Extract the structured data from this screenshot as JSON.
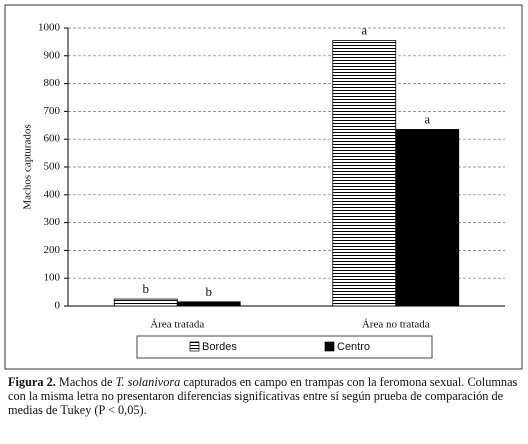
{
  "chart_data": {
    "type": "bar",
    "ylabel": "Machos capturados",
    "categories": [
      "Área tratada",
      "Área no tratada"
    ],
    "series": [
      {
        "name": "Bordes",
        "color": "#ffffff",
        "values": [
          25,
          955
        ],
        "labels": [
          "b",
          "a"
        ]
      },
      {
        "name": "Centro",
        "color": "#000000",
        "values": [
          15,
          635
        ],
        "labels": [
          "b",
          "a"
        ]
      }
    ],
    "ylim": [
      0,
      1000
    ],
    "yticks": [
      0,
      100,
      200,
      300,
      400,
      500,
      600,
      700,
      800,
      900,
      1000
    ],
    "grid": true,
    "legend": "bottom"
  },
  "caption": {
    "label": "Figura 2.",
    "parts": [
      " Machos de ",
      "T. solanivora",
      " capturados en campo en trampas con la feromona sexual. Columnas con la misma letra no presentaron diferencias significativas entre sí según prueba de comparación de medias de Tukey (P < 0,05)."
    ]
  }
}
